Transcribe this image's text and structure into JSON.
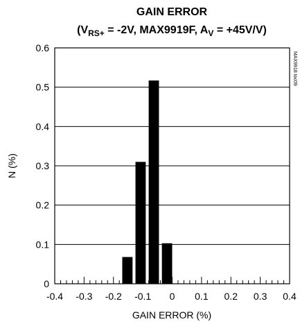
{
  "chart_data": {
    "type": "bar",
    "title_line1": "GAIN ERROR",
    "title_line2": {
      "open": "(V",
      "sub1": "RS+",
      "mid": " = -2V, MAX9919F, A",
      "sub2": "V",
      "close": " = +45V/V)"
    },
    "xlabel": "GAIN ERROR (%)",
    "ylabel": "N (%)",
    "xlim": [
      -0.4,
      0.4
    ],
    "ylim": [
      0,
      0.6
    ],
    "x_ticks": [
      -0.4,
      -0.3,
      -0.2,
      -0.1,
      0,
      0.1,
      0.2,
      0.3,
      0.4
    ],
    "x_tick_labels": [
      "-0.4",
      "-0.3",
      "-0.2",
      "-0.1",
      "0",
      "0.1",
      "0.2",
      "0.3",
      "0.4"
    ],
    "y_ticks": [
      0,
      0.1,
      0.2,
      0.3,
      0.4,
      0.5,
      0.6
    ],
    "y_tick_labels": [
      "0",
      "0.1",
      "0.2",
      "0.3",
      "0.4",
      "0.5",
      "0.6"
    ],
    "bins": [
      {
        "x0": -0.17,
        "x1": -0.135,
        "value": 0.068
      },
      {
        "x0": -0.125,
        "x1": -0.09,
        "value": 0.31
      },
      {
        "x0": -0.08,
        "x1": -0.045,
        "value": 0.517
      },
      {
        "x0": -0.035,
        "x1": 0.0,
        "value": 0.103
      }
    ],
    "grid": "horizontal",
    "bar_color": "#000000",
    "side_note": "MAX9918 toc09"
  }
}
